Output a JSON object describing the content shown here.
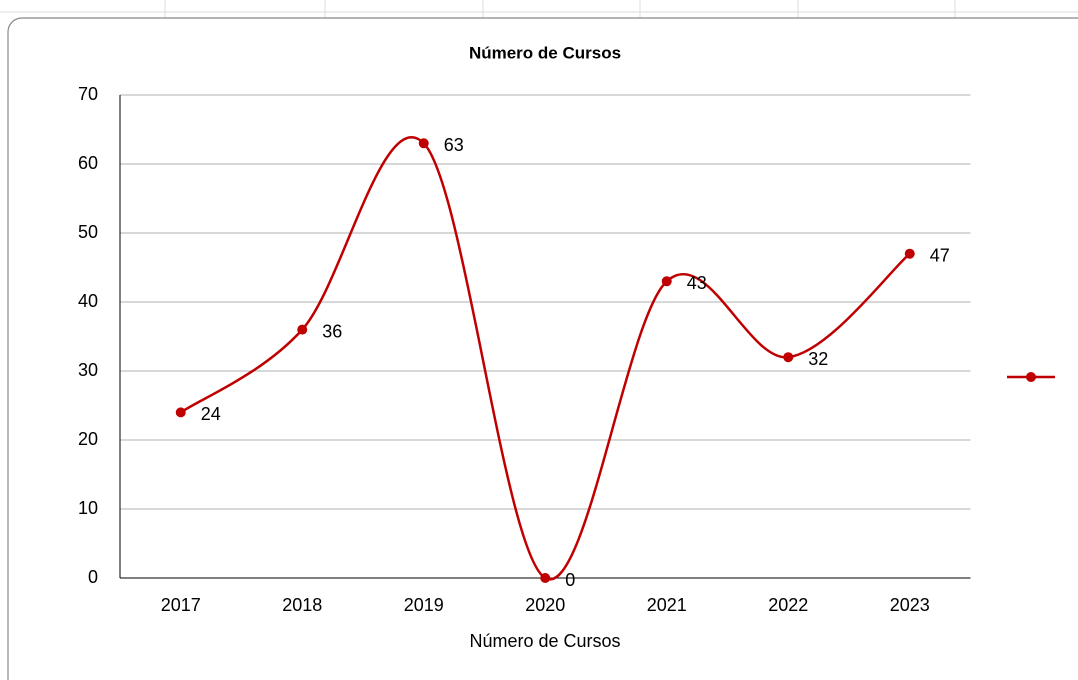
{
  "chart_data": {
    "type": "line",
    "title": "Número de Cursos",
    "x_label": "Número de Cursos",
    "categories": [
      "2017",
      "2018",
      "2019",
      "2020",
      "2021",
      "2022",
      "2023"
    ],
    "series": [
      {
        "color": "#c00000",
        "values": [
          24,
          36,
          63,
          0,
          43,
          32,
          47
        ]
      }
    ],
    "ylim": [
      0,
      70
    ],
    "yticks": [
      0,
      10,
      20,
      30,
      40,
      50,
      60,
      70
    ],
    "grid": true,
    "smooth": true,
    "legend": "right"
  }
}
